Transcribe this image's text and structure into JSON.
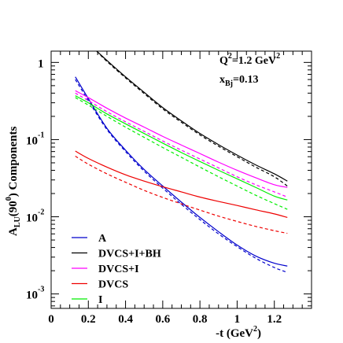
{
  "chart_data": {
    "type": "line",
    "xlabel": "-t (GeV",
    "xlabel_sup": "2",
    "xlabel_close": ")",
    "ylabel": "A",
    "ylabel_sub": "LU",
    "ylabel_rest": "(90",
    "ylabel_sup": "0",
    "ylabel_end": ") Components",
    "xlim": [
      0,
      1.4
    ],
    "ylim": [
      0.00065,
      1.4
    ],
    "yscale": "log",
    "grid": false,
    "legend_position": "bottom-left",
    "x_ticks": [
      {
        "value": 0,
        "label": "0"
      },
      {
        "value": 0.2,
        "label": "0.2"
      },
      {
        "value": 0.4,
        "label": "0.4"
      },
      {
        "value": 0.6,
        "label": "0.6"
      },
      {
        "value": 0.8,
        "label": "0.8"
      },
      {
        "value": 1.0,
        "label": "1"
      },
      {
        "value": 1.2,
        "label": "1.2"
      }
    ],
    "y_ticks": [
      {
        "value": 1,
        "base": "1",
        "exp": ""
      },
      {
        "value": 0.1,
        "base": "10",
        "exp": "-1"
      },
      {
        "value": 0.01,
        "base": "10",
        "exp": "-2"
      },
      {
        "value": 0.001,
        "base": "10",
        "exp": "-3"
      }
    ],
    "annotations": {
      "q2_main": "Q",
      "q2_sup": "2",
      "q2_rest": "=1.2 GeV",
      "q2_unit_sup": "2",
      "xbj_main": "x",
      "xbj_sub": "Bj",
      "xbj_rest": "=0.13"
    },
    "series": [
      {
        "name": "A",
        "color": "#0000cc",
        "x": [
          0.13,
          0.2,
          0.3,
          0.4,
          0.5,
          0.6,
          0.7,
          0.8,
          0.9,
          1.0,
          1.1,
          1.2,
          1.27
        ],
        "solid": [
          0.65,
          0.34,
          0.14,
          0.073,
          0.041,
          0.025,
          0.0155,
          0.0098,
          0.0064,
          0.0043,
          0.0031,
          0.0025,
          0.0023
        ],
        "dashed": [
          0.6,
          0.32,
          0.135,
          0.07,
          0.039,
          0.0235,
          0.0145,
          0.0092,
          0.006,
          0.0041,
          0.0029,
          0.0022,
          0.0019
        ]
      },
      {
        "name": "DVCS+I+BH",
        "color": "#000000",
        "x": [
          0.245,
          0.3,
          0.4,
          0.5,
          0.6,
          0.7,
          0.8,
          0.9,
          1.0,
          1.1,
          1.2,
          1.27
        ],
        "solid": [
          1.4,
          1.06,
          0.65,
          0.41,
          0.26,
          0.175,
          0.12,
          0.086,
          0.063,
          0.047,
          0.036,
          0.029
        ],
        "dashed": [
          1.4,
          1.03,
          0.63,
          0.395,
          0.25,
          0.168,
          0.115,
          0.082,
          0.06,
          0.044,
          0.033,
          0.025
        ]
      },
      {
        "name": "DVCS+I",
        "color": "#ff00ff",
        "x": [
          0.13,
          0.2,
          0.3,
          0.4,
          0.5,
          0.6,
          0.7,
          0.8,
          0.9,
          1.0,
          1.1,
          1.2,
          1.27
        ],
        "solid": [
          0.43,
          0.35,
          0.255,
          0.19,
          0.145,
          0.11,
          0.085,
          0.066,
          0.051,
          0.04,
          0.032,
          0.026,
          0.024
        ],
        "dashed": [
          0.4,
          0.32,
          0.23,
          0.17,
          0.128,
          0.096,
          0.073,
          0.056,
          0.043,
          0.033,
          0.026,
          0.021,
          0.018
        ]
      },
      {
        "name": "DVCS",
        "color": "#ee0000",
        "x": [
          0.13,
          0.2,
          0.3,
          0.4,
          0.5,
          0.6,
          0.7,
          0.8,
          0.9,
          1.0,
          1.1,
          1.2,
          1.27
        ],
        "solid": [
          0.071,
          0.057,
          0.044,
          0.035,
          0.029,
          0.0245,
          0.021,
          0.018,
          0.0158,
          0.014,
          0.0123,
          0.0109,
          0.0098
        ],
        "dashed": [
          0.061,
          0.048,
          0.036,
          0.028,
          0.022,
          0.0178,
          0.0147,
          0.0122,
          0.0102,
          0.0087,
          0.0075,
          0.0066,
          0.0061
        ]
      },
      {
        "name": "I",
        "color": "#00ee00",
        "x": [
          0.13,
          0.2,
          0.3,
          0.4,
          0.5,
          0.6,
          0.7,
          0.8,
          0.9,
          1.0,
          1.1,
          1.2,
          1.27
        ],
        "solid": [
          0.37,
          0.3,
          0.215,
          0.16,
          0.12,
          0.09,
          0.068,
          0.052,
          0.04,
          0.031,
          0.024,
          0.0185,
          0.0165
        ],
        "dashed": [
          0.35,
          0.28,
          0.2,
          0.145,
          0.107,
          0.079,
          0.059,
          0.044,
          0.033,
          0.025,
          0.019,
          0.0148,
          0.0125
        ]
      }
    ],
    "legend_order": [
      "A",
      "DVCS+I+BH",
      "DVCS+I",
      "DVCS",
      "I"
    ]
  }
}
